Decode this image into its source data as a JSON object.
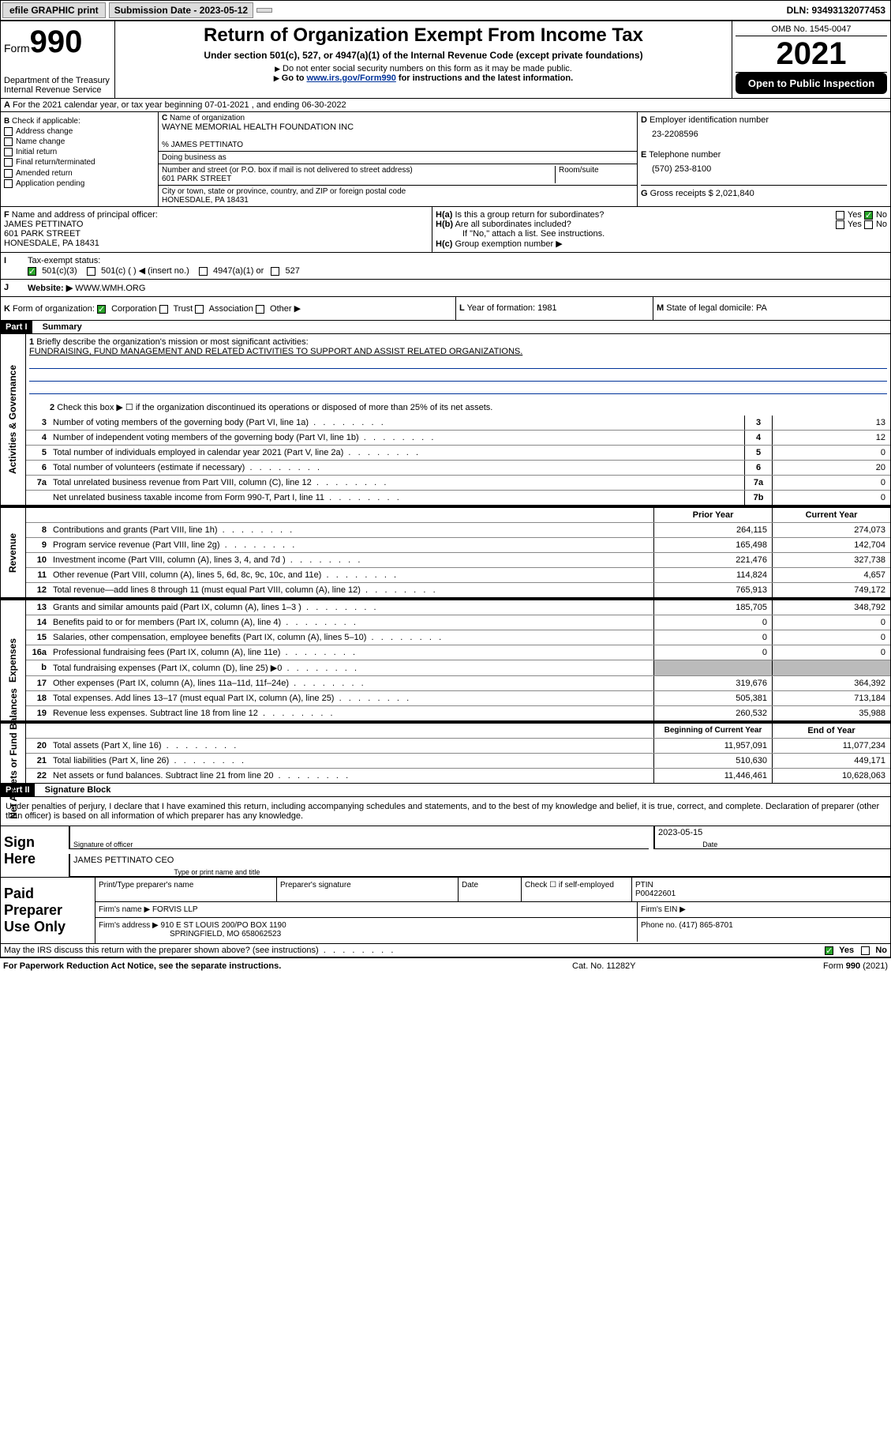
{
  "topbar": {
    "efile": "efile GRAPHIC print",
    "submission_label": "Submission Date - 2023-05-12",
    "dln": "DLN: 93493132077453"
  },
  "header": {
    "form_prefix": "Form",
    "form_num": "990",
    "dept": "Department of the Treasury",
    "irs": "Internal Revenue Service",
    "title": "Return of Organization Exempt From Income Tax",
    "subtitle": "Under section 501(c), 527, or 4947(a)(1) of the Internal Revenue Code (except private foundations)",
    "warn": "Do not enter social security numbers on this form as it may be made public.",
    "goto_prefix": "Go to ",
    "goto_link": "www.irs.gov/Form990",
    "goto_suffix": " for instructions and the latest information.",
    "omb": "OMB No. 1545-0047",
    "year": "2021",
    "open": "Open to Public Inspection"
  },
  "A": {
    "text": "For the 2021 calendar year, or tax year beginning 07-01-2021   , and ending 06-30-2022"
  },
  "B": {
    "label": "Check if applicable:",
    "items": [
      "Address change",
      "Name change",
      "Initial return",
      "Final return/terminated",
      "Amended return",
      "Application pending"
    ]
  },
  "C": {
    "name_label": "Name of organization",
    "name": "WAYNE MEMORIAL HEALTH FOUNDATION INC",
    "care_of": "% JAMES PETTINATO",
    "dba_label": "Doing business as",
    "street_label": "Number and street (or P.O. box if mail is not delivered to street address)",
    "street": "601 PARK STREET",
    "room_label": "Room/suite",
    "city_label": "City or town, state or province, country, and ZIP or foreign postal code",
    "city": "HONESDALE, PA  18431"
  },
  "D": {
    "label": "Employer identification number",
    "val": "23-2208596"
  },
  "E": {
    "label": "Telephone number",
    "val": "(570) 253-8100"
  },
  "G": {
    "label": "Gross receipts $",
    "val": "2,021,840"
  },
  "F": {
    "label": "Name and address of principal officer:",
    "name": "JAMES PETTINATO",
    "street": "601 PARK STREET",
    "city": "HONESDALE, PA  18431"
  },
  "H": {
    "a": "Is this a group return for subordinates?",
    "b": "Are all subordinates included?",
    "no_attach": "If \"No,\" attach a list. See instructions.",
    "c": "Group exemption number ▶",
    "yes": "Yes",
    "no": "No"
  },
  "I": {
    "label": "Tax-exempt status:",
    "opts": [
      "501(c)(3)",
      "501(c) (  ) ◀ (insert no.)",
      "4947(a)(1) or",
      "527"
    ]
  },
  "J": {
    "label": "Website: ▶",
    "val": "WWW.WMH.ORG"
  },
  "K": {
    "label": "Form of organization:",
    "opts": [
      "Corporation",
      "Trust",
      "Association",
      "Other ▶"
    ]
  },
  "L": {
    "label": "Year of formation:",
    "val": "1981"
  },
  "M": {
    "label": "State of legal domicile:",
    "val": "PA"
  },
  "part1": {
    "hdr": "Part I",
    "title": "Summary",
    "q1": "Briefly describe the organization's mission or most significant activities:",
    "mission": "FUNDRAISING, FUND MANAGEMENT AND RELATED ACTIVITIES TO SUPPORT AND ASSIST RELATED ORGANIZATIONS.",
    "q2": "Check this box ▶ ☐  if the organization discontinued its operations or disposed of more than 25% of its net assets.",
    "rows_gov": [
      {
        "n": "3",
        "d": "Number of voting members of the governing body (Part VI, line 1a)",
        "box": "3",
        "v": "13"
      },
      {
        "n": "4",
        "d": "Number of independent voting members of the governing body (Part VI, line 1b)",
        "box": "4",
        "v": "12"
      },
      {
        "n": "5",
        "d": "Total number of individuals employed in calendar year 2021 (Part V, line 2a)",
        "box": "5",
        "v": "0"
      },
      {
        "n": "6",
        "d": "Total number of volunteers (estimate if necessary)",
        "box": "6",
        "v": "20"
      },
      {
        "n": "7a",
        "d": "Total unrelated business revenue from Part VIII, column (C), line 12",
        "box": "7a",
        "v": "0"
      },
      {
        "n": "",
        "d": "Net unrelated business taxable income from Form 990-T, Part I, line 11",
        "box": "7b",
        "v": "0"
      }
    ],
    "col_prior": "Prior Year",
    "col_current": "Current Year",
    "rows_rev": [
      {
        "n": "8",
        "d": "Contributions and grants (Part VIII, line 1h)",
        "p": "264,115",
        "c": "274,073"
      },
      {
        "n": "9",
        "d": "Program service revenue (Part VIII, line 2g)",
        "p": "165,498",
        "c": "142,704"
      },
      {
        "n": "10",
        "d": "Investment income (Part VIII, column (A), lines 3, 4, and 7d )",
        "p": "221,476",
        "c": "327,738"
      },
      {
        "n": "11",
        "d": "Other revenue (Part VIII, column (A), lines 5, 6d, 8c, 9c, 10c, and 11e)",
        "p": "114,824",
        "c": "4,657"
      },
      {
        "n": "12",
        "d": "Total revenue—add lines 8 through 11 (must equal Part VIII, column (A), line 12)",
        "p": "765,913",
        "c": "749,172"
      }
    ],
    "rows_exp": [
      {
        "n": "13",
        "d": "Grants and similar amounts paid (Part IX, column (A), lines 1–3 )",
        "p": "185,705",
        "c": "348,792"
      },
      {
        "n": "14",
        "d": "Benefits paid to or for members (Part IX, column (A), line 4)",
        "p": "0",
        "c": "0"
      },
      {
        "n": "15",
        "d": "Salaries, other compensation, employee benefits (Part IX, column (A), lines 5–10)",
        "p": "0",
        "c": "0"
      },
      {
        "n": "16a",
        "d": "Professional fundraising fees (Part IX, column (A), line 11e)",
        "p": "0",
        "c": "0"
      },
      {
        "n": "b",
        "d": "Total fundraising expenses (Part IX, column (D), line 25) ▶0",
        "p": "",
        "c": "",
        "shade": true
      },
      {
        "n": "17",
        "d": "Other expenses (Part IX, column (A), lines 11a–11d, 11f–24e)",
        "p": "319,676",
        "c": "364,392"
      },
      {
        "n": "18",
        "d": "Total expenses. Add lines 13–17 (must equal Part IX, column (A), line 25)",
        "p": "505,381",
        "c": "713,184"
      },
      {
        "n": "19",
        "d": "Revenue less expenses. Subtract line 18 from line 12",
        "p": "260,532",
        "c": "35,988"
      }
    ],
    "col_begin": "Beginning of Current Year",
    "col_end": "End of Year",
    "rows_net": [
      {
        "n": "20",
        "d": "Total assets (Part X, line 16)",
        "p": "11,957,091",
        "c": "11,077,234"
      },
      {
        "n": "21",
        "d": "Total liabilities (Part X, line 26)",
        "p": "510,630",
        "c": "449,171"
      },
      {
        "n": "22",
        "d": "Net assets or fund balances. Subtract line 21 from line 20",
        "p": "11,446,461",
        "c": "10,628,063"
      }
    ],
    "vlabels": {
      "gov": "Activities & Governance",
      "rev": "Revenue",
      "exp": "Expenses",
      "net": "Net Assets or Fund Balances"
    }
  },
  "part2": {
    "hdr": "Part II",
    "title": "Signature Block",
    "decl": "Under penalties of perjury, I declare that I have examined this return, including accompanying schedules and statements, and to the best of my knowledge and belief, it is true, correct, and complete. Declaration of preparer (other than officer) is based on all information of which preparer has any knowledge.",
    "sign_here": "Sign Here",
    "sig_date": "2023-05-15",
    "sig_officer_label": "Signature of officer",
    "date_label": "Date",
    "officer_name": "JAMES PETTINATO CEO",
    "type_label": "Type or print name and title",
    "paid": "Paid Preparer Use Only",
    "prep_name_label": "Print/Type preparer's name",
    "prep_sig_label": "Preparer's signature",
    "prep_date_label": "Date",
    "self_emp": "Check ☐ if self-employed",
    "ptin_label": "PTIN",
    "ptin": "P00422601",
    "firm_name_label": "Firm's name    ▶",
    "firm_name": "FORVIS LLP",
    "firm_ein_label": "Firm's EIN ▶",
    "firm_addr_label": "Firm's address ▶",
    "firm_addr1": "910 E ST LOUIS 200/PO BOX 1190",
    "firm_addr2": "SPRINGFIELD, MO  658062523",
    "phone_label": "Phone no.",
    "phone": "(417) 865-8701",
    "discuss": "May the IRS discuss this return with the preparer shown above? (see instructions)"
  },
  "footer": {
    "pra": "For Paperwork Reduction Act Notice, see the separate instructions.",
    "cat": "Cat. No. 11282Y",
    "form": "Form 990 (2021)"
  }
}
